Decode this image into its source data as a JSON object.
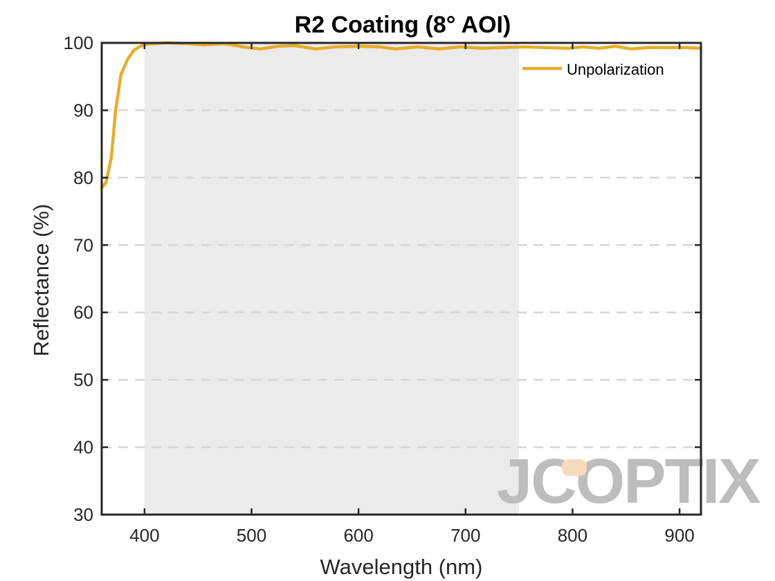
{
  "chart_data": {
    "type": "line",
    "title": "R2 Coating  (8° AOI)",
    "xlabel": "Wavelength (nm)",
    "ylabel": "Reflectance (%)",
    "xlim": [
      360,
      920
    ],
    "ylim": [
      30,
      100
    ],
    "xticks": [
      400,
      500,
      600,
      700,
      800,
      900
    ],
    "yticks": [
      30,
      40,
      50,
      60,
      70,
      80,
      90,
      100
    ],
    "grid": "horizontal dashed",
    "legend_position": "top-right",
    "highlight_band": {
      "x_start": 400,
      "x_end": 750,
      "color": "#ebebeb"
    },
    "series": [
      {
        "name": "Unpolarization",
        "color": "#E8AC27",
        "points": [
          [
            360,
            78.5
          ],
          [
            364,
            79.3
          ],
          [
            369,
            83.0
          ],
          [
            373,
            90.0
          ],
          [
            378,
            95.3
          ],
          [
            384,
            97.5
          ],
          [
            390,
            98.9
          ],
          [
            396,
            99.5
          ],
          [
            402,
            99.8
          ],
          [
            410,
            99.9
          ],
          [
            420,
            100.0
          ],
          [
            440,
            99.9
          ],
          [
            455,
            99.7
          ],
          [
            475,
            99.9
          ],
          [
            492,
            99.4
          ],
          [
            508,
            99.1
          ],
          [
            525,
            99.5
          ],
          [
            540,
            99.6
          ],
          [
            560,
            99.1
          ],
          [
            578,
            99.4
          ],
          [
            600,
            99.5
          ],
          [
            620,
            99.4
          ],
          [
            635,
            99.1
          ],
          [
            655,
            99.4
          ],
          [
            675,
            99.1
          ],
          [
            695,
            99.4
          ],
          [
            715,
            99.2
          ],
          [
            735,
            99.3
          ],
          [
            755,
            99.4
          ],
          [
            775,
            99.3
          ],
          [
            795,
            99.2
          ],
          [
            810,
            99.4
          ],
          [
            825,
            99.2
          ],
          [
            840,
            99.5
          ],
          [
            855,
            99.1
          ],
          [
            870,
            99.3
          ],
          [
            890,
            99.3
          ],
          [
            905,
            99.3
          ],
          [
            920,
            99.2
          ]
        ]
      }
    ],
    "watermark": "JCOPTIX",
    "watermark_accent_color": "#F7D9BE"
  }
}
